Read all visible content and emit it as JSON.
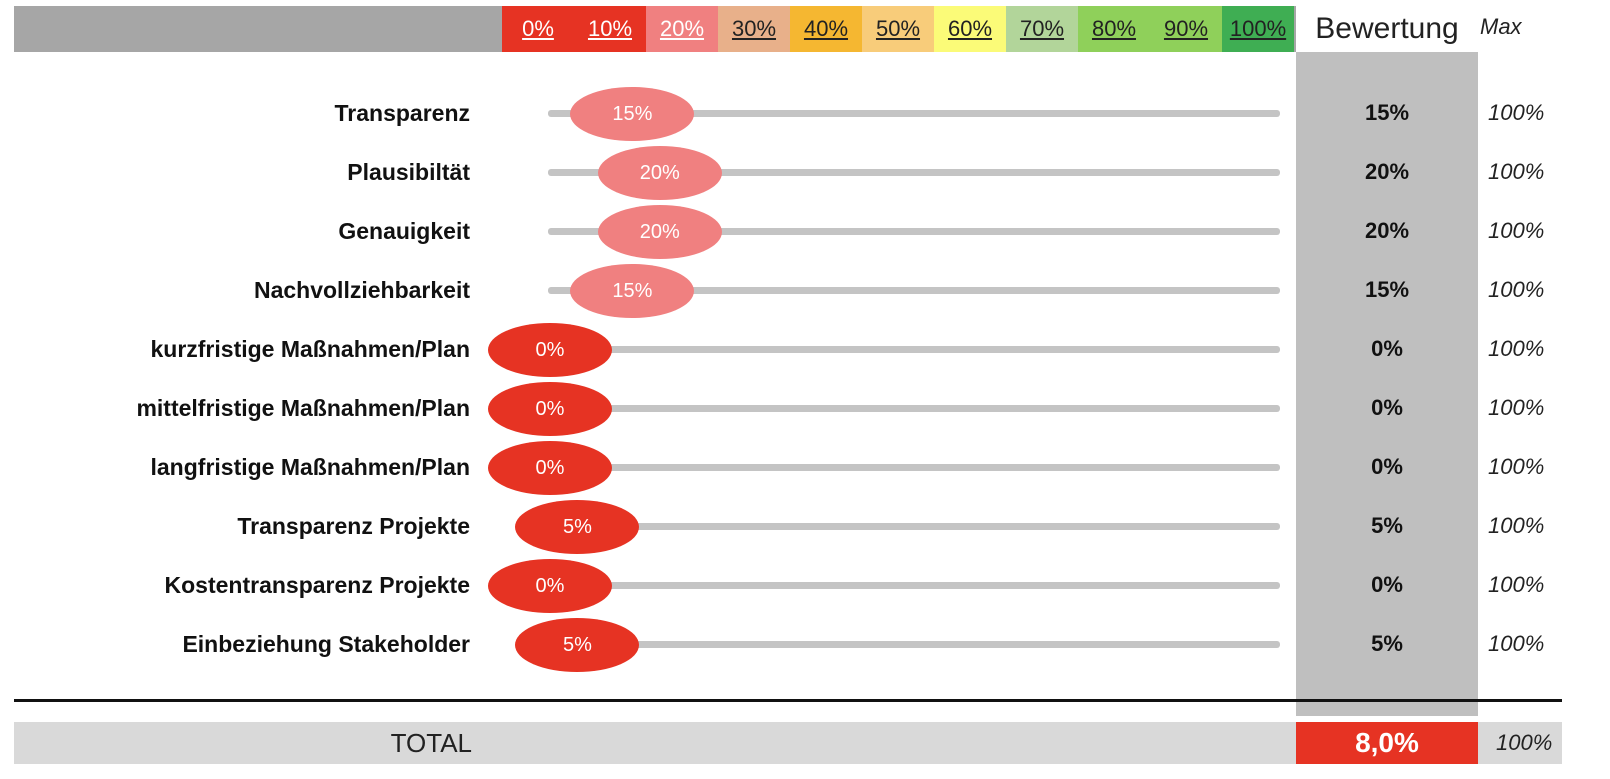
{
  "header": {
    "scale": [
      {
        "label": "0%",
        "bg": "#e63323",
        "fg": "#ffffff"
      },
      {
        "label": "10%",
        "bg": "#e63323",
        "fg": "#ffffff"
      },
      {
        "label": "20%",
        "bg": "#f08080",
        "fg": "#ffffff"
      },
      {
        "label": "30%",
        "bg": "#e8b08a",
        "fg": "#222222"
      },
      {
        "label": "40%",
        "bg": "#f5b731",
        "fg": "#222222"
      },
      {
        "label": "50%",
        "bg": "#f8cc7a",
        "fg": "#222222"
      },
      {
        "label": "60%",
        "bg": "#fbfb78",
        "fg": "#222222"
      },
      {
        "label": "70%",
        "bg": "#b2d59a",
        "fg": "#222222"
      },
      {
        "label": "80%",
        "bg": "#8fd05a",
        "fg": "#222222"
      },
      {
        "label": "90%",
        "bg": "#8fd05a",
        "fg": "#222222"
      },
      {
        "label": "100%",
        "bg": "#3fae53",
        "fg": "#222222"
      }
    ],
    "bewertung": "Bewertung",
    "max": "Max"
  },
  "rows": [
    {
      "label": "Transparenz",
      "value": 15,
      "knob_text": "15%",
      "score": "15%",
      "max": "100%"
    },
    {
      "label": "Plausibiltät",
      "value": 20,
      "knob_text": "20%",
      "score": "20%",
      "max": "100%"
    },
    {
      "label": "Genauigkeit",
      "value": 20,
      "knob_text": "20%",
      "score": "20%",
      "max": "100%"
    },
    {
      "label": "Nachvollziehbarkeit",
      "value": 15,
      "knob_text": "15%",
      "score": "15%",
      "max": "100%"
    },
    {
      "label": "kurzfristige Maßnahmen/Plan",
      "value": 0,
      "knob_text": "0%",
      "score": "0%",
      "max": "100%"
    },
    {
      "label": "mittelfristige Maßnahmen/Plan",
      "value": 0,
      "knob_text": "0%",
      "score": "0%",
      "max": "100%"
    },
    {
      "label": "langfristige Maßnahmen/Plan",
      "value": 0,
      "knob_text": "0%",
      "score": "0%",
      "max": "100%"
    },
    {
      "label": "Transparenz Projekte",
      "value": 5,
      "knob_text": "5%",
      "score": "5%",
      "max": "100%"
    },
    {
      "label": "Kostentransparenz Projekte",
      "value": 0,
      "knob_text": "0%",
      "score": "0%",
      "max": "100%"
    },
    {
      "label": "Einbeziehung Stakeholder",
      "value": 5,
      "knob_text": "5%",
      "score": "5%",
      "max": "100%"
    }
  ],
  "total": {
    "label": "TOTAL",
    "score": "8,0%",
    "max": "100%",
    "score_color": "#e63323"
  },
  "colors": {
    "knob_low": "#e63323",
    "knob_mid": "#f08080",
    "track": "#c4c4c4"
  }
}
